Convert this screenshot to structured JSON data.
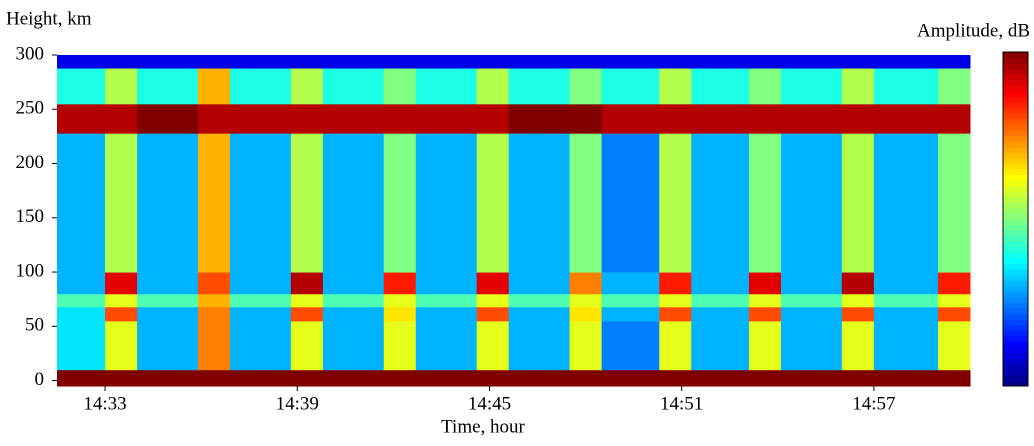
{
  "chart_data": {
    "type": "heatmap",
    "y_label": "Height, km",
    "x_label": "Time, hour",
    "colorbar_label": "Amplitude, dB",
    "colormap": "jet",
    "clim": [
      0,
      10
    ],
    "xlim": [
      871.5,
      900.0
    ],
    "ylim": [
      -5,
      300
    ],
    "xticks": [
      {
        "value": 873,
        "label": "14:33"
      },
      {
        "value": 879,
        "label": "14:39"
      },
      {
        "value": 885,
        "label": "14:45"
      },
      {
        "value": 891,
        "label": "14:51"
      },
      {
        "value": 897,
        "label": "14:57"
      }
    ],
    "yticks": [
      0,
      50,
      100,
      150,
      200,
      250,
      300
    ],
    "x_edges": [
      871.5,
      873.0,
      874.0,
      875.9,
      876.9,
      878.8,
      879.8,
      881.7,
      882.7,
      884.6,
      885.6,
      887.5,
      888.5,
      890.3,
      891.3,
      893.1,
      894.1,
      896.0,
      897.0,
      899.0,
      900.0
    ],
    "y_edges": [
      -5,
      10,
      55,
      68,
      80,
      100,
      228,
      255,
      288,
      300
    ],
    "z": [
      [
        10,
        10,
        10,
        10,
        10,
        10,
        10,
        10,
        10,
        10,
        10,
        10,
        10,
        10,
        10,
        10,
        10,
        10,
        10,
        10
      ],
      [
        3.5,
        6,
        3,
        7.5,
        3,
        6,
        3,
        6,
        3,
        6,
        3,
        6,
        2.5,
        6,
        3,
        6,
        3,
        6,
        3,
        6
      ],
      [
        3.5,
        8,
        3,
        7.5,
        3,
        8,
        3,
        6.5,
        3,
        8,
        3,
        6.5,
        3,
        8,
        3,
        8,
        3,
        8,
        3,
        8
      ],
      [
        4.5,
        6,
        4.5,
        7,
        4.5,
        6,
        4.5,
        6,
        4.5,
        6,
        4.5,
        6,
        4.5,
        6,
        4.5,
        6,
        4.5,
        6,
        4.5,
        6
      ],
      [
        3,
        9,
        3,
        8,
        3,
        9.5,
        3,
        8.5,
        3,
        9,
        3,
        7.5,
        3,
        8.5,
        3,
        9,
        3,
        9.5,
        3,
        8.5
      ],
      [
        3,
        5.5,
        3,
        7,
        3,
        5.5,
        3,
        5,
        3,
        5.5,
        3,
        5,
        2.5,
        5.5,
        3,
        5,
        3,
        5.5,
        3,
        5
      ],
      [
        9.5,
        9.5,
        10,
        9.5,
        9.5,
        9.5,
        9.5,
        9.5,
        9.5,
        9.5,
        10,
        10,
        9.5,
        9.5,
        9.5,
        9.5,
        9.5,
        9.5,
        9.5,
        9.5
      ],
      [
        4,
        5.5,
        4,
        7,
        4,
        5.5,
        4,
        5,
        4,
        5.5,
        4,
        5,
        4,
        5.5,
        4,
        5,
        4,
        5.5,
        4,
        5
      ],
      [
        1,
        1,
        1,
        1,
        1,
        1,
        1,
        1,
        1,
        1,
        1,
        1,
        1,
        1,
        1,
        1,
        1,
        1,
        1,
        1
      ]
    ]
  }
}
